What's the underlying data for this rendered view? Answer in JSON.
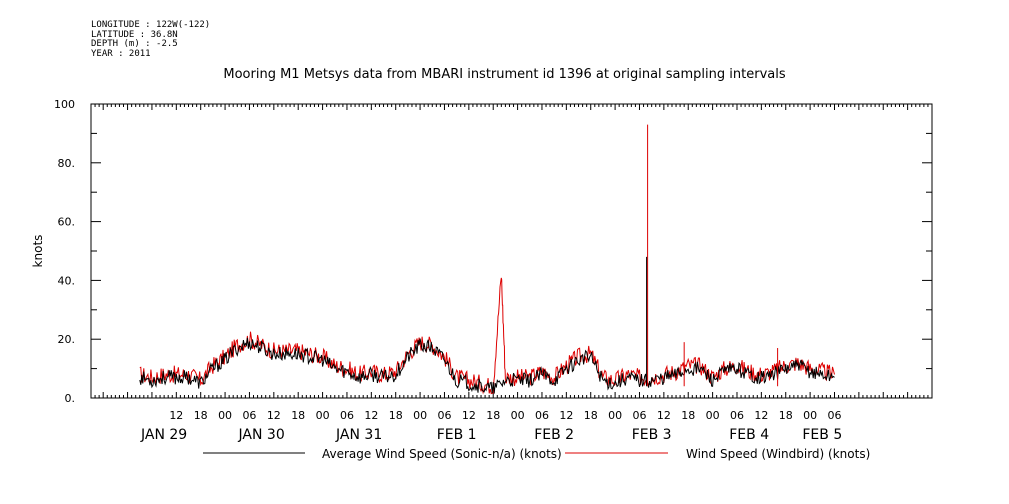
{
  "header": {
    "lines": [
      "LONGITUDE : 122W(-122)",
      "LATITUDE : 36.8N",
      "DEPTH (m) : -2.5",
      "YEAR : 2011"
    ]
  },
  "chart_data": {
    "type": "line",
    "title": "Mooring M1 Metsys data from MBARI instrument id 1396 at original sampling intervals",
    "xlabel": "",
    "ylabel": "knots",
    "ylim": [
      0,
      100
    ],
    "yticks": [
      "0.",
      "20.",
      "40.",
      "60.",
      "80.",
      "100"
    ],
    "xlim_hours": [
      -9,
      198
    ],
    "hour_ticks": [
      {
        "h": 12,
        "label": "12"
      },
      {
        "h": 18,
        "label": "18"
      },
      {
        "h": 24,
        "label": "00"
      },
      {
        "h": 30,
        "label": "06"
      },
      {
        "h": 36,
        "label": "12"
      },
      {
        "h": 42,
        "label": "18"
      },
      {
        "h": 48,
        "label": "00"
      },
      {
        "h": 54,
        "label": "06"
      },
      {
        "h": 60,
        "label": "12"
      },
      {
        "h": 66,
        "label": "18"
      },
      {
        "h": 72,
        "label": "00"
      },
      {
        "h": 78,
        "label": "06"
      },
      {
        "h": 84,
        "label": "12"
      },
      {
        "h": 90,
        "label": "18"
      },
      {
        "h": 96,
        "label": "00"
      },
      {
        "h": 102,
        "label": "06"
      },
      {
        "h": 108,
        "label": "12"
      },
      {
        "h": 114,
        "label": "18"
      },
      {
        "h": 120,
        "label": "00"
      },
      {
        "h": 126,
        "label": "06"
      },
      {
        "h": 132,
        "label": "12"
      },
      {
        "h": 138,
        "label": "18"
      },
      {
        "h": 144,
        "label": "00"
      },
      {
        "h": 150,
        "label": "06"
      },
      {
        "h": 156,
        "label": "12"
      },
      {
        "h": 162,
        "label": "18"
      },
      {
        "h": 168,
        "label": "00"
      },
      {
        "h": 174,
        "label": "06"
      }
    ],
    "day_labels": [
      {
        "h": 9,
        "label": "JAN 29"
      },
      {
        "h": 33,
        "label": "JAN 30"
      },
      {
        "h": 57,
        "label": "JAN 31"
      },
      {
        "h": 81,
        "label": "FEB  1"
      },
      {
        "h": 105,
        "label": "FEB  2"
      },
      {
        "h": 129,
        "label": "FEB  3"
      },
      {
        "h": 153,
        "label": "FEB  4"
      },
      {
        "h": 171,
        "label": "FEB  5"
      }
    ],
    "series": [
      {
        "name": "Average Wind Speed (Sonic-n/a) (knots)",
        "color": "#000000",
        "x": [
          3,
          6,
          9,
          12,
          15,
          18,
          21,
          24,
          27,
          30,
          33,
          36,
          39,
          42,
          45,
          48,
          51,
          54,
          57,
          60,
          63,
          66,
          69,
          72,
          75,
          78,
          81,
          84,
          87,
          90,
          93,
          96,
          99,
          102,
          105,
          108,
          111,
          114,
          117,
          120,
          123,
          126,
          129,
          132,
          135,
          138,
          141,
          144,
          147,
          150,
          153,
          156,
          159,
          162,
          165,
          168,
          171,
          174
        ],
        "y": [
          7,
          6,
          7,
          7,
          7,
          5,
          10,
          13,
          17,
          19,
          17,
          15,
          15,
          15,
          14,
          13,
          10,
          9,
          7,
          8,
          7,
          8,
          14,
          18,
          17,
          13,
          6,
          5,
          4,
          3,
          6,
          6,
          6,
          8,
          6,
          10,
          13,
          14,
          6,
          5,
          7,
          6,
          6,
          7,
          8,
          10,
          10,
          6,
          9,
          10,
          8,
          7,
          8,
          10,
          11,
          9,
          8,
          7
        ]
      },
      {
        "name": "Wind Speed (Windbird) (knots)",
        "color": "#dd0000",
        "x": [
          3,
          6,
          9,
          12,
          15,
          18,
          21,
          24,
          27,
          30,
          33,
          36,
          39,
          42,
          45,
          48,
          51,
          54,
          57,
          60,
          63,
          66,
          69,
          72,
          75,
          78,
          81,
          84,
          87,
          90,
          92,
          93,
          96,
          99,
          102,
          105,
          108,
          111,
          114,
          117,
          120,
          123,
          126,
          129,
          132,
          135,
          138,
          141,
          144,
          147,
          150,
          153,
          156,
          159,
          162,
          165,
          168,
          171,
          174
        ],
        "y": [
          8,
          7,
          8,
          8,
          8,
          6,
          11,
          14,
          18,
          20,
          18,
          16,
          16,
          16,
          15,
          14,
          11,
          10,
          8,
          9,
          8,
          9,
          15,
          19,
          18,
          14,
          7,
          6,
          5,
          4,
          42,
          7,
          7,
          7,
          9,
          7,
          11,
          14,
          15,
          7,
          6,
          8,
          7,
          7,
          8,
          9,
          11,
          11,
          7,
          10,
          11,
          9,
          8,
          9,
          11,
          12,
          10,
          9,
          8
        ],
        "spikes": [
          {
            "x": 128,
            "y": 93
          },
          {
            "x": 137,
            "y": 19
          },
          {
            "x": 160,
            "y": 17
          }
        ]
      }
    ],
    "black_spikes": [
      {
        "x": 128,
        "y": 48
      }
    ],
    "legend_placement": "bottom",
    "grid": false
  }
}
